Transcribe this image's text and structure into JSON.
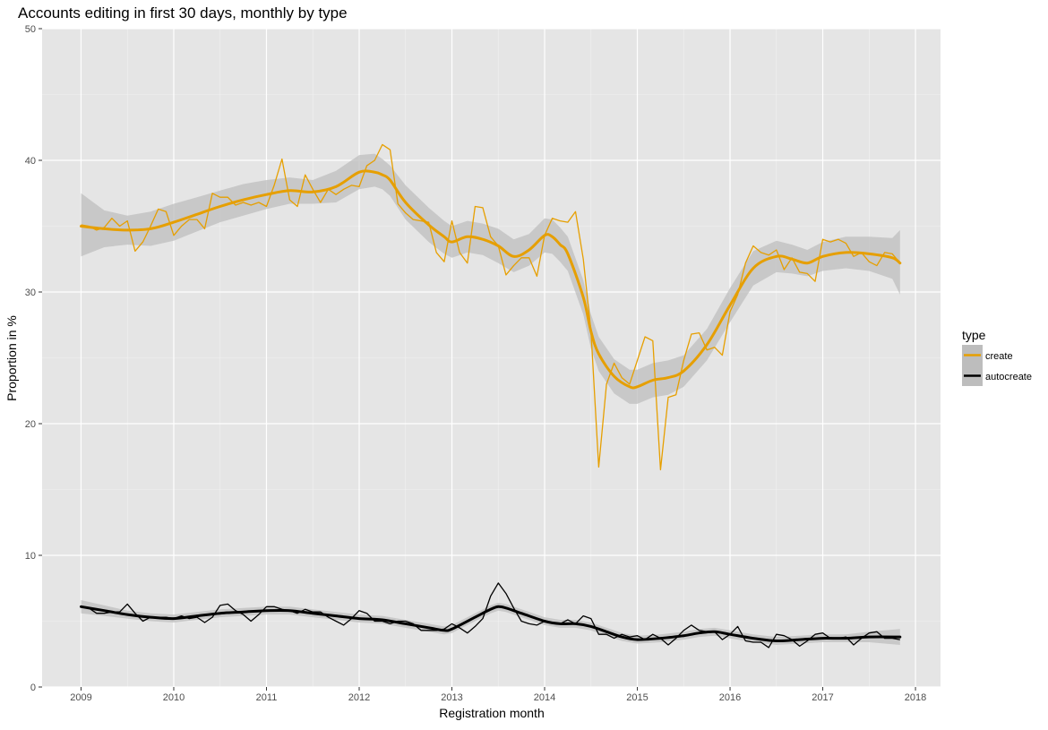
{
  "chart_data": {
    "type": "line",
    "title": "Accounts editing in first 30 days, monthly by type",
    "xlabel": "Registration month",
    "ylabel": "Proportion in %",
    "xlim": [
      2008.58,
      2018.27
    ],
    "ylim": [
      0,
      50
    ],
    "x_ticks": [
      2009,
      2010,
      2011,
      2012,
      2013,
      2014,
      2015,
      2016,
      2017,
      2018
    ],
    "y_ticks": [
      0,
      10,
      20,
      30,
      40,
      50
    ],
    "grid": true,
    "legend": {
      "title": "type",
      "position": "right"
    },
    "series": [
      {
        "name": "create",
        "color": "#E69F00",
        "x": [
          2009.0,
          2009.083,
          2009.167,
          2009.25,
          2009.333,
          2009.417,
          2009.5,
          2009.583,
          2009.667,
          2009.75,
          2009.833,
          2009.917,
          2010.0,
          2010.083,
          2010.167,
          2010.25,
          2010.333,
          2010.417,
          2010.5,
          2010.583,
          2010.667,
          2010.75,
          2010.833,
          2010.917,
          2011.0,
          2011.083,
          2011.167,
          2011.25,
          2011.333,
          2011.417,
          2011.5,
          2011.583,
          2011.667,
          2011.75,
          2011.833,
          2011.917,
          2012.0,
          2012.083,
          2012.167,
          2012.25,
          2012.333,
          2012.417,
          2012.5,
          2012.583,
          2012.667,
          2012.75,
          2012.833,
          2012.917,
          2013.0,
          2013.083,
          2013.167,
          2013.25,
          2013.333,
          2013.417,
          2013.5,
          2013.583,
          2013.667,
          2013.75,
          2013.833,
          2013.917,
          2014.0,
          2014.083,
          2014.167,
          2014.25,
          2014.333,
          2014.417,
          2014.5,
          2014.583,
          2014.667,
          2014.75,
          2014.833,
          2014.917,
          2015.0,
          2015.083,
          2015.167,
          2015.25,
          2015.333,
          2015.417,
          2015.5,
          2015.583,
          2015.667,
          2015.75,
          2015.833,
          2015.917,
          2016.0,
          2016.083,
          2016.167,
          2016.25,
          2016.333,
          2016.417,
          2016.5,
          2016.583,
          2016.667,
          2016.75,
          2016.833,
          2016.917,
          2017.0,
          2017.083,
          2017.167,
          2017.25,
          2017.333,
          2017.417,
          2017.5,
          2017.583,
          2017.667,
          2017.75,
          2017.833
        ],
        "values": [
          35.1,
          35.0,
          34.7,
          34.9,
          35.6,
          35.0,
          35.4,
          33.1,
          33.8,
          35.0,
          36.3,
          36.1,
          34.3,
          35.0,
          35.5,
          35.5,
          34.8,
          37.5,
          37.2,
          37.2,
          36.6,
          36.8,
          36.6,
          36.8,
          36.5,
          38.1,
          40.1,
          37.0,
          36.5,
          38.9,
          37.8,
          36.8,
          37.8,
          37.4,
          37.8,
          38.1,
          38.0,
          39.6,
          40.0,
          41.2,
          40.8,
          36.7,
          36.0,
          35.5,
          35.4,
          35.3,
          33.0,
          32.3,
          35.4,
          33.0,
          32.2,
          36.5,
          36.4,
          34.2,
          33.5,
          31.3,
          32.0,
          32.6,
          32.6,
          31.2,
          34.3,
          35.6,
          35.4,
          35.3,
          36.1,
          32.5,
          27.0,
          16.7,
          23.0,
          24.6,
          23.5,
          23.0,
          24.8,
          26.6,
          26.3,
          16.5,
          22.0,
          22.2,
          24.8,
          26.8,
          26.9,
          25.6,
          25.8,
          25.2,
          28.5,
          29.8,
          32.2,
          33.5,
          33.0,
          32.8,
          33.2,
          31.7,
          32.6,
          31.5,
          31.4,
          30.8,
          34.0,
          33.8,
          34.0,
          33.7,
          32.7,
          33.0,
          32.3,
          32.0,
          33.0,
          32.9,
          32.2
        ]
      },
      {
        "name": "autocreate",
        "color": "#000000",
        "x": [
          2009.0,
          2009.083,
          2009.167,
          2009.25,
          2009.333,
          2009.417,
          2009.5,
          2009.583,
          2009.667,
          2009.75,
          2009.833,
          2009.917,
          2010.0,
          2010.083,
          2010.167,
          2010.25,
          2010.333,
          2010.417,
          2010.5,
          2010.583,
          2010.667,
          2010.75,
          2010.833,
          2010.917,
          2011.0,
          2011.083,
          2011.167,
          2011.25,
          2011.333,
          2011.417,
          2011.5,
          2011.583,
          2011.667,
          2011.75,
          2011.833,
          2011.917,
          2012.0,
          2012.083,
          2012.167,
          2012.25,
          2012.333,
          2012.417,
          2012.5,
          2012.583,
          2012.667,
          2012.75,
          2012.833,
          2012.917,
          2013.0,
          2013.083,
          2013.167,
          2013.25,
          2013.333,
          2013.417,
          2013.5,
          2013.583,
          2013.667,
          2013.75,
          2013.833,
          2013.917,
          2014.0,
          2014.083,
          2014.167,
          2014.25,
          2014.333,
          2014.417,
          2014.5,
          2014.583,
          2014.667,
          2014.75,
          2014.833,
          2014.917,
          2015.0,
          2015.083,
          2015.167,
          2015.25,
          2015.333,
          2015.417,
          2015.5,
          2015.583,
          2015.667,
          2015.75,
          2015.833,
          2015.917,
          2016.0,
          2016.083,
          2016.167,
          2016.25,
          2016.333,
          2016.417,
          2016.5,
          2016.583,
          2016.667,
          2016.75,
          2016.833,
          2016.917,
          2017.0,
          2017.083,
          2017.167,
          2017.25,
          2017.333,
          2017.417,
          2017.5,
          2017.583,
          2017.667,
          2017.75,
          2017.833
        ],
        "values": [
          6.1,
          6.0,
          5.6,
          5.6,
          5.7,
          5.7,
          6.3,
          5.6,
          5.0,
          5.3,
          5.3,
          5.3,
          5.2,
          5.4,
          5.2,
          5.3,
          4.9,
          5.3,
          6.2,
          6.3,
          5.8,
          5.5,
          5.0,
          5.5,
          6.1,
          6.1,
          5.9,
          5.8,
          5.6,
          5.9,
          5.7,
          5.7,
          5.3,
          5.0,
          4.7,
          5.2,
          5.8,
          5.6,
          5.0,
          5.0,
          4.8,
          5.0,
          5.0,
          4.8,
          4.3,
          4.3,
          4.3,
          4.4,
          4.8,
          4.5,
          4.1,
          4.6,
          5.2,
          6.9,
          7.9,
          7.1,
          6.0,
          5.0,
          4.8,
          4.7,
          5.0,
          4.9,
          4.8,
          5.1,
          4.8,
          5.4,
          5.2,
          4.0,
          4.0,
          3.7,
          4.0,
          3.8,
          3.9,
          3.6,
          4.0,
          3.7,
          3.2,
          3.7,
          4.3,
          4.7,
          4.3,
          4.2,
          4.2,
          3.6,
          4.0,
          4.6,
          3.5,
          3.4,
          3.4,
          3.0,
          4.0,
          3.9,
          3.6,
          3.1,
          3.5,
          4.0,
          4.1,
          3.7,
          3.7,
          3.8,
          3.2,
          3.7,
          4.1,
          4.2,
          3.7,
          3.7,
          3.6
        ]
      }
    ],
    "smooth_series": [
      {
        "name": "create",
        "color": "#E69F00",
        "x": [
          2009.0,
          2009.25,
          2009.5,
          2009.75,
          2010.0,
          2010.25,
          2010.5,
          2010.75,
          2011.0,
          2011.25,
          2011.5,
          2011.75,
          2012.0,
          2012.167,
          2012.25,
          2012.333,
          2012.5,
          2012.75,
          2012.917,
          2013.0,
          2013.167,
          2013.333,
          2013.5,
          2013.667,
          2013.833,
          2014.0,
          2014.083,
          2014.167,
          2014.25,
          2014.417,
          2014.5,
          2014.583,
          2014.75,
          2014.917,
          2015.0,
          2015.167,
          2015.333,
          2015.5,
          2015.75,
          2016.0,
          2016.25,
          2016.5,
          2016.667,
          2016.833,
          2017.0,
          2017.25,
          2017.5,
          2017.75,
          2017.833
        ],
        "values": [
          35.0,
          34.8,
          34.7,
          34.8,
          35.3,
          35.9,
          36.5,
          37.0,
          37.4,
          37.7,
          37.6,
          38.0,
          39.1,
          39.1,
          38.9,
          38.5,
          36.8,
          35.1,
          34.2,
          33.8,
          34.2,
          34.0,
          33.5,
          32.7,
          33.2,
          34.3,
          34.2,
          33.6,
          32.9,
          29.6,
          27.0,
          25.3,
          23.6,
          22.8,
          22.8,
          23.3,
          23.5,
          24.0,
          26.0,
          29.0,
          31.8,
          32.7,
          32.5,
          32.2,
          32.7,
          33.0,
          32.9,
          32.6,
          32.2
        ],
        "band_low": [
          32.7,
          33.4,
          33.6,
          33.5,
          33.9,
          34.6,
          35.3,
          35.8,
          36.3,
          36.7,
          36.7,
          36.8,
          37.8,
          38.0,
          37.8,
          37.3,
          35.5,
          33.8,
          32.9,
          32.6,
          33.0,
          32.8,
          32.2,
          31.5,
          32.0,
          33.0,
          32.9,
          32.3,
          31.6,
          28.3,
          25.7,
          24.0,
          22.3,
          21.5,
          21.5,
          22.0,
          22.2,
          22.8,
          24.8,
          27.7,
          30.5,
          31.5,
          31.4,
          31.2,
          31.6,
          31.8,
          31.6,
          31.0,
          29.8
        ],
        "band_high": [
          37.5,
          36.2,
          35.8,
          36.1,
          36.7,
          37.2,
          37.7,
          38.2,
          38.5,
          38.7,
          38.5,
          39.2,
          40.4,
          40.5,
          40.1,
          39.6,
          38.1,
          36.4,
          35.4,
          35.0,
          35.4,
          35.2,
          34.8,
          34.0,
          34.4,
          35.6,
          35.5,
          34.9,
          34.2,
          30.9,
          28.3,
          26.6,
          24.9,
          24.1,
          24.1,
          24.6,
          24.8,
          25.2,
          27.2,
          30.3,
          33.1,
          33.9,
          33.6,
          33.2,
          33.8,
          34.2,
          34.2,
          34.1,
          34.7
        ]
      },
      {
        "name": "autocreate",
        "color": "#000000",
        "x": [
          2009.0,
          2009.25,
          2009.5,
          2009.75,
          2010.0,
          2010.25,
          2010.5,
          2010.75,
          2011.0,
          2011.25,
          2011.5,
          2011.75,
          2012.0,
          2012.25,
          2012.5,
          2012.75,
          2012.917,
          2013.0,
          2013.25,
          2013.417,
          2013.5,
          2013.583,
          2013.75,
          2014.0,
          2014.167,
          2014.333,
          2014.5,
          2014.667,
          2014.833,
          2015.0,
          2015.25,
          2015.5,
          2015.667,
          2015.833,
          2016.0,
          2016.25,
          2016.5,
          2016.75,
          2017.0,
          2017.25,
          2017.5,
          2017.833
        ],
        "values": [
          6.1,
          5.8,
          5.5,
          5.3,
          5.2,
          5.4,
          5.6,
          5.7,
          5.8,
          5.8,
          5.6,
          5.4,
          5.2,
          5.1,
          4.8,
          4.5,
          4.3,
          4.4,
          5.3,
          5.9,
          6.1,
          6.0,
          5.6,
          5.0,
          4.8,
          4.8,
          4.6,
          4.2,
          3.8,
          3.6,
          3.7,
          3.9,
          4.1,
          4.2,
          4.0,
          3.7,
          3.5,
          3.6,
          3.7,
          3.7,
          3.8,
          3.8
        ],
        "band_low": [
          5.6,
          5.4,
          5.2,
          5.0,
          4.9,
          5.1,
          5.3,
          5.4,
          5.5,
          5.5,
          5.3,
          5.1,
          4.9,
          4.8,
          4.5,
          4.2,
          4.0,
          4.1,
          5.0,
          5.6,
          5.8,
          5.7,
          5.3,
          4.7,
          4.5,
          4.5,
          4.3,
          3.9,
          3.5,
          3.3,
          3.4,
          3.6,
          3.8,
          3.9,
          3.7,
          3.4,
          3.2,
          3.3,
          3.4,
          3.4,
          3.4,
          3.2
        ],
        "band_high": [
          6.6,
          6.2,
          5.8,
          5.6,
          5.5,
          5.7,
          5.9,
          6.0,
          6.1,
          6.1,
          5.9,
          5.7,
          5.5,
          5.4,
          5.1,
          4.8,
          4.6,
          4.7,
          5.6,
          6.2,
          6.4,
          6.3,
          5.9,
          5.3,
          5.1,
          5.1,
          4.9,
          4.5,
          4.1,
          3.9,
          4.0,
          4.2,
          4.4,
          4.5,
          4.3,
          4.0,
          3.8,
          3.9,
          4.0,
          4.0,
          4.2,
          4.4
        ]
      }
    ],
    "band_color": "#BDBDBD",
    "panel_color": "#E5E5E5"
  }
}
